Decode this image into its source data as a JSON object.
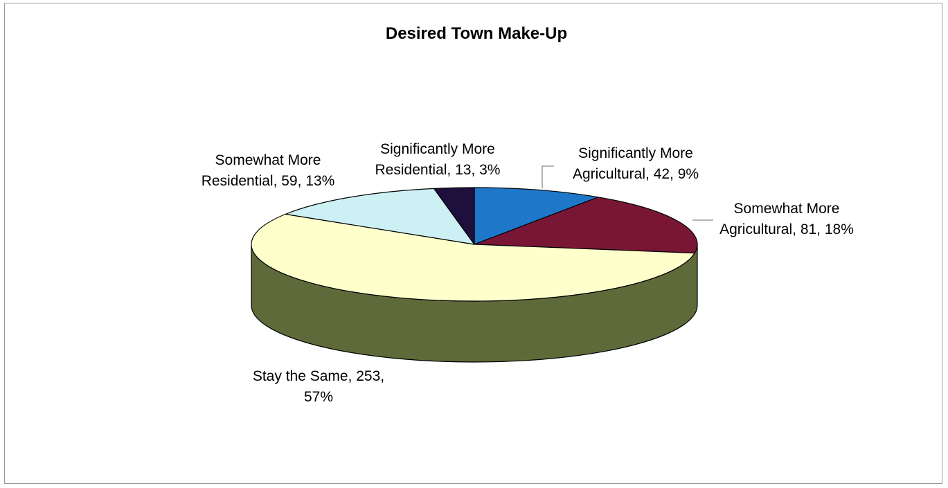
{
  "chart_data": {
    "type": "pie",
    "title": "Desired Town Make-Up",
    "slices": [
      {
        "label_lines": [
          "Significantly More",
          "Agricultural, 42, 9%"
        ],
        "value": 42,
        "percent": 9,
        "color": "#1f77c9"
      },
      {
        "label_lines": [
          "Somewhat More",
          "Agricultural, 81, 18%"
        ],
        "value": 81,
        "percent": 18,
        "color": "#7a1635"
      },
      {
        "label_lines": [
          "Stay the Same, 253,",
          "57%"
        ],
        "value": 253,
        "percent": 57,
        "color": "#ffffcc"
      },
      {
        "label_lines": [
          "Somewhat More",
          "Residential, 59, 13%"
        ],
        "value": 59,
        "percent": 13,
        "color": "#ccf0f4"
      },
      {
        "label_lines": [
          "Significantly More",
          "Residential, 13, 3%"
        ],
        "value": 13,
        "percent": 3,
        "color": "#1e0f3c"
      }
    ],
    "side_color": "#5f6a3a",
    "legend": "none"
  }
}
